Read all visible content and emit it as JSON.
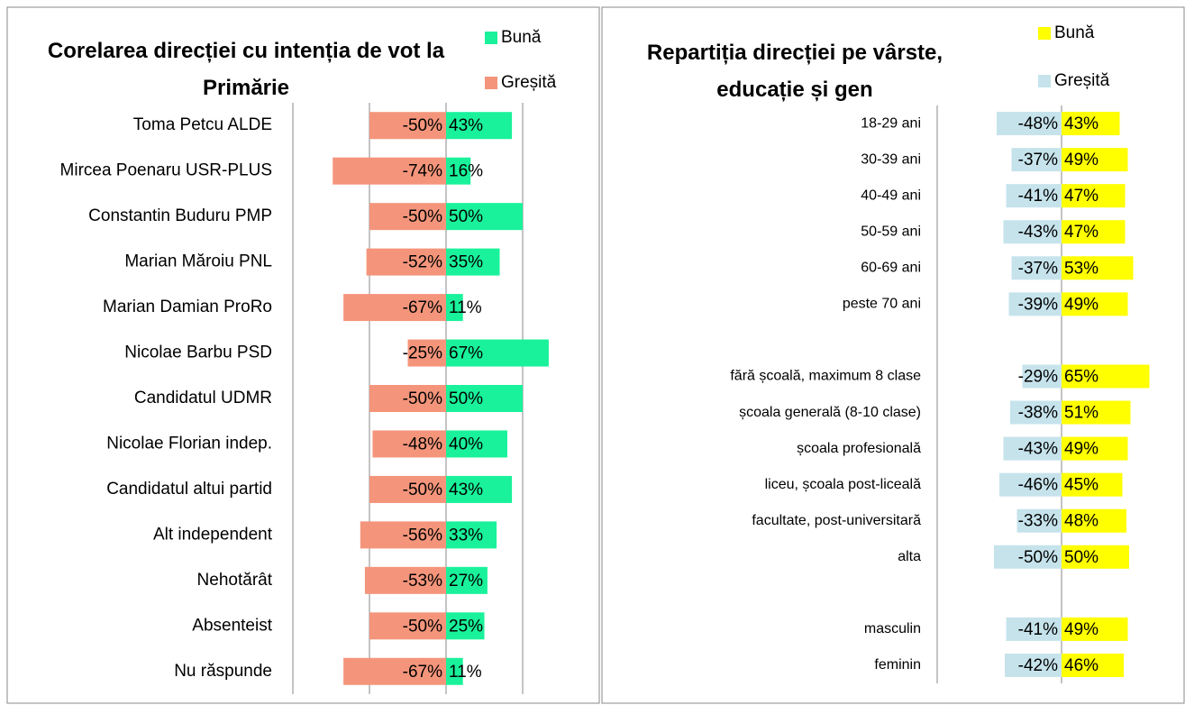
{
  "chart_data": [
    {
      "type": "bar",
      "orientation": "horizontal",
      "title": "Corelarea direcției cu intenția de vot la Primărie",
      "categories": [
        "Toma Petcu ALDE",
        "Mircea Poenaru USR-PLUS",
        "Constantin Buduru PMP",
        "Marian Măroiu PNL",
        "Marian Damian ProRo",
        "Nicolae Barbu PSD",
        "Candidatul UDMR",
        "Nicolae Florian indep.",
        "Candidatul altui partid",
        "Alt independent",
        "Nehotărât",
        "Absenteist",
        "Nu răspunde"
      ],
      "series": [
        {
          "name": "Bună",
          "color": "#19f29a",
          "values": [
            43,
            16,
            50,
            35,
            11,
            67,
            50,
            40,
            43,
            33,
            27,
            25,
            11
          ],
          "value_labels": [
            "43%",
            "16%",
            "50%",
            "35%",
            "11%",
            "67%",
            "50%",
            "40%",
            "43%",
            "33%",
            "27%",
            "25%",
            "11%"
          ]
        },
        {
          "name": "Greșită",
          "color": "#f4957b",
          "values": [
            -50,
            -74,
            -50,
            -52,
            -67,
            -25,
            -50,
            -48,
            -50,
            -56,
            -53,
            -50,
            -67
          ],
          "value_labels": [
            "-50%",
            "-74%",
            "-50%",
            "-52%",
            "-67%",
            "-25%",
            "-50%",
            "-48%",
            "-50%",
            "-56%",
            "-53%",
            "-50%",
            "-67%"
          ]
        }
      ],
      "xlim": [
        -100,
        100
      ],
      "xticks": [
        -50,
        0,
        50
      ],
      "grid": true,
      "legend": "top-right"
    },
    {
      "type": "bar",
      "orientation": "horizontal",
      "title": "Repartiția direcției pe vârste, educație și gen",
      "categories": [
        "18-29 ani",
        "30-39 ani",
        "40-49 ani",
        "50-59 ani",
        "60-69 ani",
        "peste 70 ani",
        null,
        "fără școală, maximum 8 clase",
        "școala generală (8-10 clase)",
        "școala profesională",
        "liceu, școala post-liceală",
        "facultate, post-universitară",
        "alta",
        null,
        "masculin",
        "feminin"
      ],
      "series": [
        {
          "name": "Bună",
          "color": "#ffff00",
          "values": [
            43,
            49,
            47,
            47,
            53,
            49,
            null,
            65,
            51,
            49,
            45,
            48,
            50,
            null,
            49,
            46
          ],
          "value_labels": [
            "43%",
            "49%",
            "47%",
            "47%",
            "53%",
            "49%",
            null,
            "65%",
            "51%",
            "49%",
            "45%",
            "48%",
            "50%",
            null,
            "49%",
            "46%"
          ]
        },
        {
          "name": "Greșită",
          "color": "#c6e3ec",
          "values": [
            -48,
            -37,
            -41,
            -43,
            -37,
            -39,
            null,
            -29,
            -38,
            -43,
            -46,
            -33,
            -50,
            null,
            -41,
            -42
          ],
          "value_labels": [
            "-48%",
            "-37%",
            "-41%",
            "-43%",
            "-37%",
            "-39%",
            null,
            "-29%",
            "-38%",
            "-43%",
            "-46%",
            "-33%",
            "-50%",
            null,
            "-41%",
            "-42%"
          ]
        }
      ],
      "xlim": [
        -92,
        90
      ],
      "xticks": [
        0
      ],
      "grid": true,
      "legend": "top-right"
    }
  ]
}
